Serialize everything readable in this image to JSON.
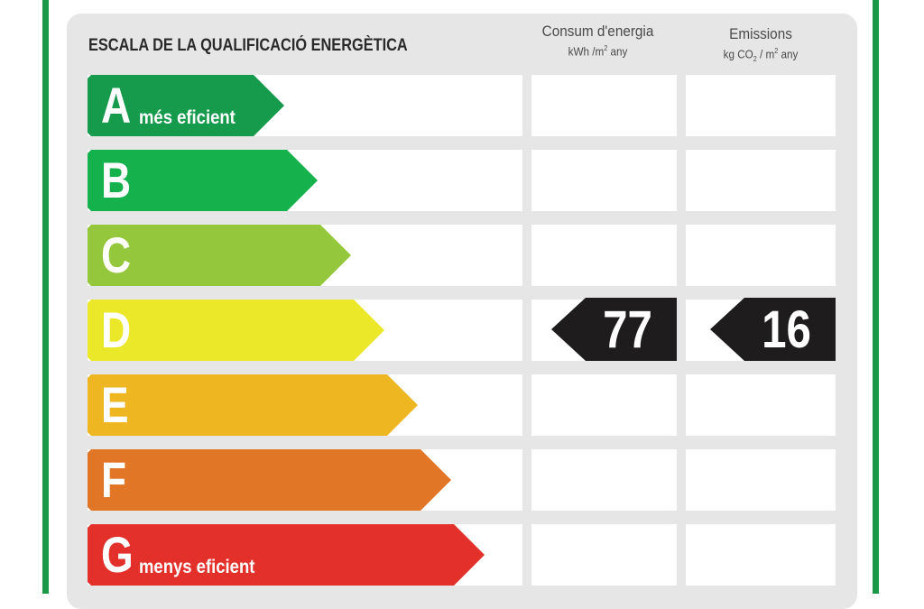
{
  "title": "ESCALA DE LA QUALIFICACIÓ ENERGÈTICA",
  "columns": {
    "energy": {
      "label": "Consum d'energia",
      "unit_prefix": "kWh /m",
      "unit_sup": "2",
      "unit_suffix": " any"
    },
    "emissions": {
      "label": "Emissions",
      "unit_prefix": "kg CO",
      "unit_sub": "2",
      "unit_mid": " / m",
      "unit_sup": "2",
      "unit_suffix": " any"
    }
  },
  "ratings": [
    {
      "letter": "A",
      "label": "més eficient",
      "color": "#169a4c"
    },
    {
      "letter": "B",
      "label": "",
      "color": "#15b14d"
    },
    {
      "letter": "C",
      "label": "",
      "color": "#95c73c"
    },
    {
      "letter": "D",
      "label": "",
      "color": "#ebe829"
    },
    {
      "letter": "E",
      "label": "",
      "color": "#eeb621"
    },
    {
      "letter": "F",
      "label": "",
      "color": "#e17626"
    },
    {
      "letter": "G",
      "label": "menys eficient",
      "color": "#e3302b"
    }
  ],
  "current": {
    "rating": "D",
    "energy_value": "77",
    "emissions_value": "16",
    "indicator_color": "#1e1c1c"
  },
  "frame_color": "#1a9a46"
}
